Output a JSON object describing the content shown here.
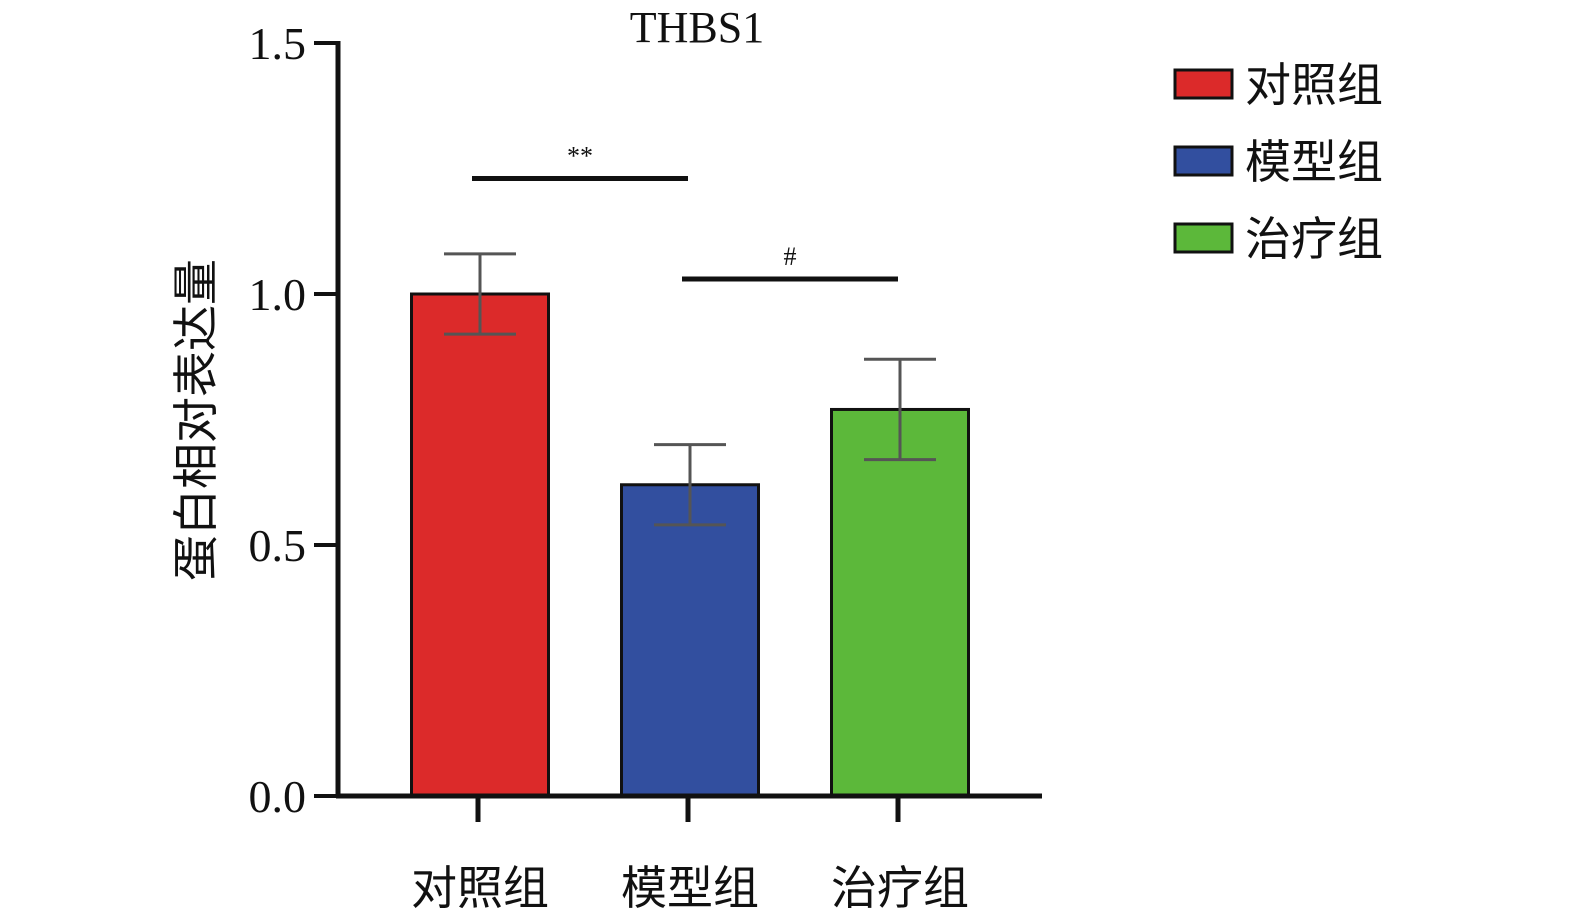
{
  "chart_data": {
    "type": "bar",
    "title": "THBS1",
    "xlabel": "",
    "ylabel": "蛋白相对表达量",
    "ylim": [
      0,
      1.5
    ],
    "yticks": [
      "0.0",
      "0.5",
      "1.0",
      "1.5"
    ],
    "ytick_values": [
      0,
      0.5,
      1.0,
      1.5
    ],
    "categories": [
      "对照组",
      "模型组",
      "治疗组"
    ],
    "values": [
      1.0,
      0.62,
      0.77
    ],
    "errors": [
      0.08,
      0.08,
      0.1
    ],
    "colors": [
      "#dc2a2a",
      "#324f9f",
      "#5cb83a"
    ],
    "legend": {
      "placement": "top-right",
      "entries": [
        "对照组",
        "模型组",
        "治疗组"
      ]
    },
    "annotations": [
      {
        "label": "**",
        "from": 0,
        "to": 1,
        "y": 1.23
      },
      {
        "label": "#",
        "from": 1,
        "to": 2,
        "y": 1.03
      }
    ],
    "grid": false
  }
}
